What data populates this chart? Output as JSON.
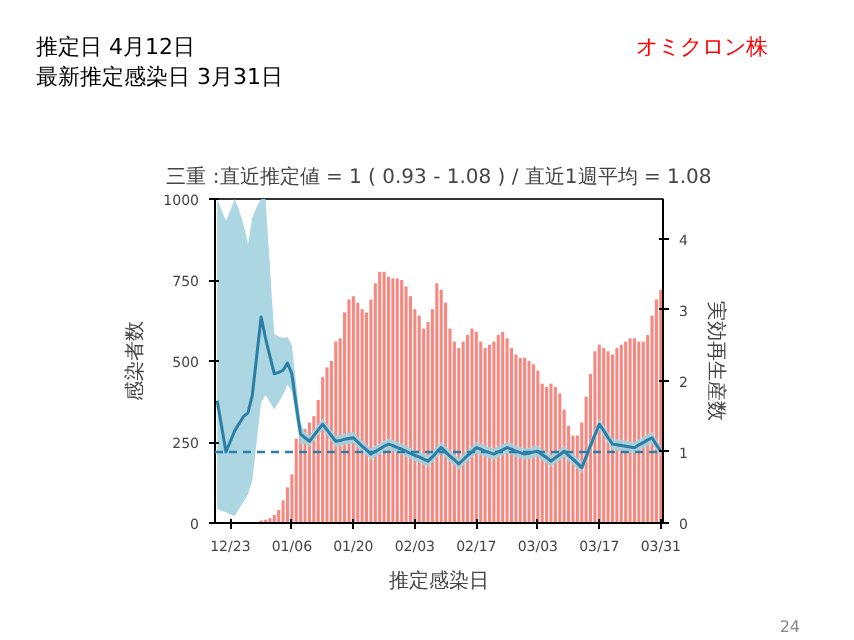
{
  "chart_data": {
    "type": "bar",
    "title": "三重 :直近推定値 = 1 ( 0.93 - 1.08 ) / 直近1週平均 = 1.08",
    "xlabel": "推定感染日",
    "ylabel": "感染者数",
    "y2label": "実効再生産数",
    "annotations": [
      "推定日  4月12日",
      "最新推定感染日  3月31日",
      "オミクロン株",
      "24"
    ],
    "categories": [
      null,
      null,
      null,
      "12/23",
      null,
      null,
      null,
      null,
      null,
      null,
      null,
      null,
      null,
      null,
      null,
      null,
      null,
      "01/06",
      null,
      null,
      null,
      null,
      null,
      null,
      null,
      null,
      null,
      null,
      null,
      null,
      null,
      "01/20",
      null,
      null,
      null,
      null,
      null,
      null,
      null,
      null,
      null,
      null,
      null,
      null,
      null,
      "02/03",
      null,
      null,
      null,
      null,
      null,
      null,
      null,
      null,
      null,
      null,
      null,
      null,
      null,
      "02/17",
      null,
      null,
      null,
      null,
      null,
      null,
      null,
      null,
      null,
      null,
      null,
      null,
      null,
      "03/03",
      null,
      null,
      null,
      null,
      null,
      null,
      null,
      null,
      null,
      null,
      null,
      null,
      null,
      "03/17",
      null,
      null,
      null,
      null,
      null,
      null,
      null,
      null,
      null,
      null,
      null,
      null,
      null,
      "03/31"
    ],
    "ylim": [
      0,
      1000
    ],
    "yticks": [
      0,
      250,
      500,
      750,
      1000
    ],
    "y2lim": [
      0,
      4.56
    ],
    "y2ticks": [
      0,
      1,
      2,
      3,
      4
    ],
    "ref_lines": [
      {
        "axis": "y2",
        "value": 1,
        "label": null,
        "color": "#2b7fa6",
        "line_style": "dashed"
      }
    ],
    "grid": false,
    "series": [
      {
        "color": "#f8877f",
        "values": [
          null,
          null,
          null,
          0,
          0,
          0,
          0,
          null,
          3,
          null,
          8,
          10,
          15,
          25,
          40,
          70,
          110,
          150,
          260,
          270,
          290,
          310,
          330,
          380,
          450,
          480,
          500,
          560,
          570,
          650,
          690,
          700,
          680,
          660,
          650,
          690,
          740,
          775,
          775,
          760,
          755,
          755,
          750,
          730,
          700,
          660,
          640,
          600,
          620,
          660,
          740,
          720,
          680,
          600,
          560,
          540,
          560,
          580,
          600,
          590,
          560,
          540,
          550,
          560,
          580,
          590,
          570,
          540,
          520,
          510,
          510,
          500,
          490,
          470,
          430,
          420,
          430,
          420,
          400,
          350,
          300,
          270,
          270,
          310,
          390,
          460,
          530,
          550,
          540,
          530,
          520,
          540,
          550,
          560,
          570,
          570,
          560,
          560,
          580,
          640,
          690,
          720
        ]
      },
      {
        "type": "line",
        "axis": "y2",
        "color": "#2b7fa6",
        "values": [
          1.72,
          1.36,
          1.0,
          1.15,
          1.3,
          1.4,
          1.5,
          1.55,
          1.8,
          2.35,
          2.9,
          2.6,
          2.35,
          2.1,
          2.12,
          2.15,
          2.25,
          2.1,
          1.65,
          1.25,
          1.2,
          1.15,
          1.23,
          1.31,
          1.39,
          1.31,
          1.23,
          1.15,
          1.16,
          1.18,
          1.19,
          1.2,
          1.14,
          1.08,
          1.03,
          0.97,
          1.01,
          1.04,
          1.08,
          1.11,
          1.09,
          1.06,
          1.04,
          1.01,
          0.98,
          0.95,
          0.93,
          0.9,
          0.87,
          0.93,
          1.0,
          1.06,
          1.0,
          0.94,
          0.89,
          0.83,
          0.89,
          0.95,
          1.0,
          1.06,
          1.04,
          1.01,
          0.99,
          0.97,
          1.0,
          1.03,
          1.06,
          1.04,
          1.01,
          0.99,
          0.97,
          0.98,
          1.0,
          1.01,
          0.96,
          0.92,
          0.87,
          0.92,
          0.96,
          1.01,
          0.95,
          0.9,
          0.84,
          0.78,
          0.93,
          1.09,
          1.24,
          1.39,
          1.3,
          1.2,
          1.11,
          1.1,
          1.09,
          1.08,
          1.07,
          1.06,
          1.1,
          1.13,
          1.17,
          1.2,
          1.1,
          1.01
        ],
        "lower": [
          0.2,
          0.17,
          0.15,
          0.12,
          0.1,
          0.2,
          0.3,
          0.4,
          0.6,
          1.15,
          1.7,
          1.8,
          1.7,
          1.6,
          1.7,
          1.8,
          1.95,
          1.85,
          1.45,
          1.1,
          1.12,
          1.07,
          1.15,
          1.23,
          1.31,
          1.23,
          1.15,
          1.07,
          1.08,
          1.1,
          1.11,
          1.12,
          1.06,
          1.0,
          0.95,
          0.89,
          0.93,
          0.96,
          1.0,
          1.03,
          1.01,
          0.98,
          0.96,
          0.93,
          0.9,
          0.87,
          0.85,
          0.82,
          0.79,
          0.85,
          0.92,
          0.98,
          0.92,
          0.86,
          0.81,
          0.75,
          0.81,
          0.87,
          0.92,
          0.98,
          0.96,
          0.93,
          0.91,
          0.89,
          0.92,
          0.95,
          0.98,
          0.96,
          0.93,
          0.91,
          0.89,
          0.9,
          0.92,
          0.93,
          0.88,
          0.84,
          0.79,
          0.84,
          0.88,
          0.93,
          0.87,
          0.82,
          0.76,
          0.7,
          0.85,
          1.01,
          1.16,
          1.31,
          1.22,
          1.12,
          1.03,
          1.02,
          1.01,
          1.0,
          0.99,
          0.98,
          1.02,
          1.05,
          1.09,
          1.12,
          1.02,
          0.93
        ],
        "upper": [
          4.56,
          4.4,
          4.25,
          4.4,
          4.56,
          4.4,
          4.2,
          3.92,
          4.3,
          4.45,
          4.56,
          4.56,
          3.6,
          2.66,
          2.63,
          2.6,
          2.62,
          2.5,
          1.95,
          1.4,
          1.28,
          1.23,
          1.31,
          1.39,
          1.47,
          1.39,
          1.31,
          1.23,
          1.24,
          1.26,
          1.27,
          1.28,
          1.22,
          1.16,
          1.11,
          1.05,
          1.09,
          1.12,
          1.16,
          1.19,
          1.17,
          1.14,
          1.12,
          1.09,
          1.06,
          1.03,
          1.01,
          0.98,
          0.95,
          1.01,
          1.08,
          1.14,
          1.08,
          1.02,
          0.97,
          0.91,
          0.97,
          1.03,
          1.08,
          1.14,
          1.12,
          1.09,
          1.07,
          1.05,
          1.08,
          1.11,
          1.14,
          1.12,
          1.09,
          1.07,
          1.05,
          1.06,
          1.08,
          1.09,
          1.04,
          1.0,
          0.95,
          1.0,
          1.04,
          1.09,
          1.03,
          0.98,
          0.92,
          0.86,
          1.01,
          1.17,
          1.32,
          1.47,
          1.38,
          1.28,
          1.19,
          1.18,
          1.17,
          1.16,
          1.15,
          1.14,
          1.18,
          1.21,
          1.25,
          1.28,
          1.18,
          1.09
        ]
      }
    ]
  }
}
